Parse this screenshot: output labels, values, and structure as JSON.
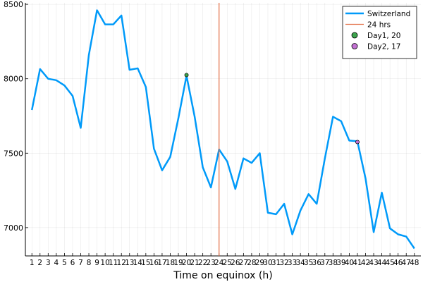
{
  "chart_data": {
    "type": "line",
    "title": "",
    "xlabel": "Time on equinox (h)",
    "ylabel": "",
    "xlim": [
      0.2,
      48.8
    ],
    "ylim": [
      6810,
      8510
    ],
    "grid": true,
    "legend_position": "top-right",
    "x_ticks": [
      1,
      2,
      3,
      4,
      5,
      6,
      7,
      8,
      9,
      10,
      11,
      12,
      13,
      14,
      15,
      16,
      17,
      18,
      19,
      20,
      21,
      22,
      23,
      24,
      25,
      26,
      27,
      28,
      29,
      30,
      31,
      32,
      33,
      34,
      35,
      36,
      37,
      38,
      39,
      40,
      41,
      42,
      43,
      44,
      45,
      46,
      47,
      48
    ],
    "y_ticks": [
      7000,
      7500,
      8000,
      8500
    ],
    "series": [
      {
        "name": "Switzerland",
        "color": "#009af9",
        "kind": "line",
        "x": [
          1,
          2,
          3,
          4,
          5,
          6,
          7,
          8,
          9,
          10,
          11,
          12,
          13,
          14,
          15,
          16,
          17,
          18,
          19,
          20,
          21,
          22,
          23,
          24,
          25,
          26,
          27,
          28,
          29,
          30,
          31,
          32,
          33,
          34,
          35,
          36,
          37,
          38,
          39,
          40,
          41,
          42,
          43,
          44,
          45,
          46,
          47,
          48
        ],
        "values": [
          7790,
          8065,
          8000,
          7990,
          7955,
          7885,
          7670,
          8160,
          8460,
          8365,
          8365,
          8425,
          8060,
          8070,
          7945,
          7530,
          7385,
          7475,
          7735,
          8020,
          7745,
          7405,
          7270,
          7525,
          7445,
          7260,
          7465,
          7435,
          7500,
          7100,
          7090,
          7160,
          6955,
          7115,
          7225,
          7160,
          7465,
          7745,
          7715,
          7585,
          7580,
          7330,
          6970,
          7235,
          6995,
          6955,
          6940,
          6860
        ]
      },
      {
        "name": "24 hrs",
        "color": "#e26f46",
        "kind": "vline",
        "x": 24
      },
      {
        "name": "Day1, 20",
        "color": "#3da44d",
        "kind": "point",
        "x": 20,
        "y": 8025
      },
      {
        "name": "Day2, 17",
        "color": "#c271d2",
        "kind": "point",
        "x": 41,
        "y": 7575
      }
    ]
  }
}
